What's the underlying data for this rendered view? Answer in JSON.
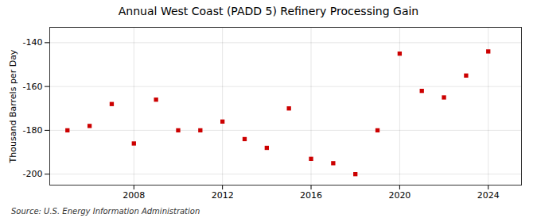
{
  "chart_data": {
    "type": "scatter",
    "title": "Annual West Coast (PADD 5) Refinery Processing Gain",
    "ylabel": "Thousand Barrels per Day",
    "source": "Source: U.S. Energy Information Administration",
    "x": [
      2005,
      2006,
      2007,
      2008,
      2009,
      2010,
      2011,
      2012,
      2013,
      2014,
      2015,
      2016,
      2017,
      2018,
      2019,
      2020,
      2021,
      2022,
      2023,
      2024
    ],
    "values": [
      -180,
      -178,
      -168,
      -186,
      -166,
      -180,
      -180,
      -176,
      -184,
      -188,
      -170,
      -193,
      -195,
      -200,
      -180,
      -145,
      -162,
      -165,
      -155,
      -144
    ],
    "color": "#cc0000",
    "marker": "square",
    "xlim": [
      2004.2,
      2025.5
    ],
    "xticks": [
      2008,
      2012,
      2016,
      2020,
      2024
    ],
    "ylim": [
      -205,
      -133
    ],
    "yticks": [
      -200,
      -180,
      -160,
      -140
    ],
    "grid": true
  }
}
